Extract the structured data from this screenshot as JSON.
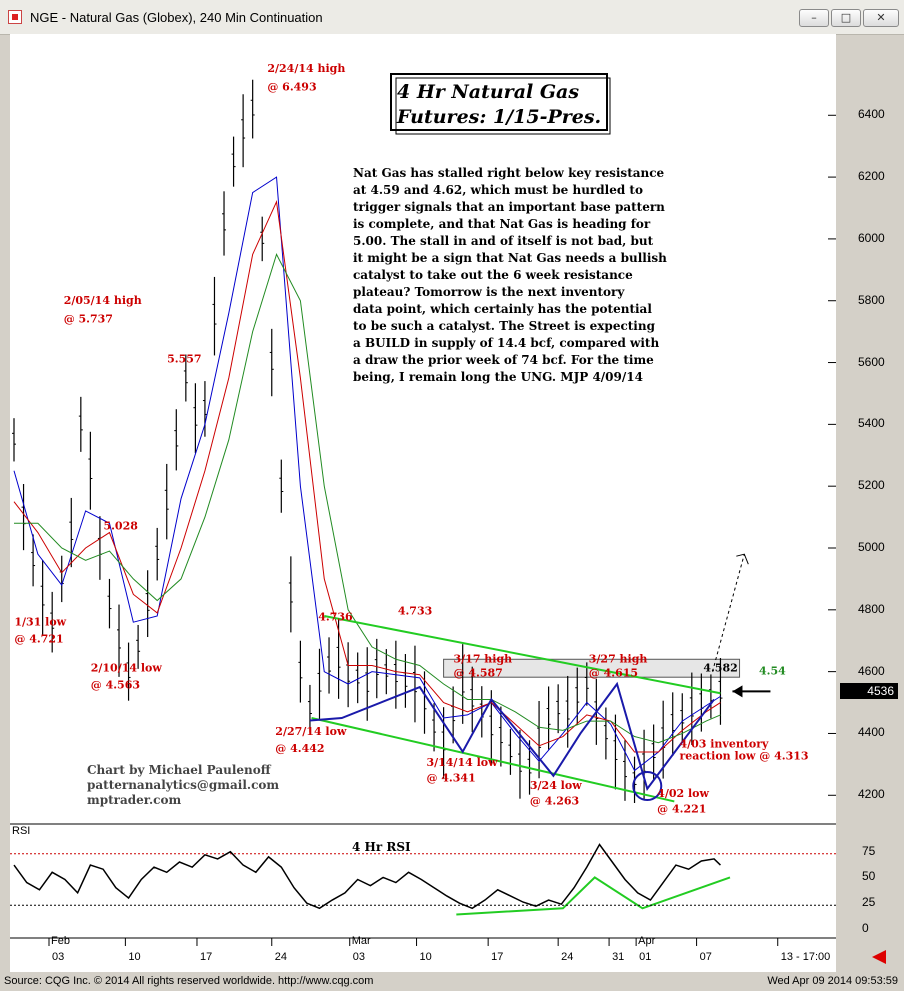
{
  "window": {
    "title": "NGE - Natural Gas (Globex), 240 Min Continuation",
    "minimize_glyph": "–",
    "maximize_glyph": "□",
    "close_glyph": "✕"
  },
  "status": {
    "source": "Source: CQG Inc. © 2014 All rights reserved worldwide. http://www.cqg.com",
    "timestamp": "Wed Apr 09 2014 09:53:59"
  },
  "chart_data": {
    "type": "line",
    "heading_line1": "4 Hr Natural Gas",
    "heading_line2": "Futures: 1/15-Pres.",
    "commentary": [
      "Nat Gas has stalled right below key resistance",
      "at 4.59 and 4.62, which must be hurdled to",
      "trigger signals that an important base pattern",
      "is complete, and that Nat Gas is heading for",
      "5.00. The stall in and of itself is not bad, but",
      "it might be a sign that Nat Gas needs a bullish",
      "catalyst to take out the 6 week resistance",
      "plateau?  Tomorrow is the next inventory",
      "data point, which certainly has the potential",
      "to be such a catalyst. The Street is expecting",
      "a BUILD in supply of 14.4 bcf, compared with",
      "a draw the prior week of 74 bcf. For the time",
      "being, I remain long the UNG. MJP  4/09/14"
    ],
    "author": [
      "Chart by Michael Paulenoff",
      "patternanalytics@gmail.com",
      "mptrader.com"
    ],
    "price_axis": {
      "range": [
        4120,
        6650
      ],
      "ticks": [
        4200,
        4400,
        4600,
        4800,
        5000,
        5200,
        5400,
        5600,
        5800,
        6000,
        6200,
        6400
      ],
      "tick_labels": [
        "4200",
        "4400",
        "4600",
        "4800",
        "5000",
        "5200",
        "5400",
        "5600",
        "5800",
        "6000",
        "6200",
        "6400"
      ],
      "last_price": "4536"
    },
    "rsi_panel": {
      "label": "RSI",
      "title": "4 Hr RSI",
      "range": [
        -5,
        100
      ],
      "ticks": [
        0,
        25,
        50,
        75
      ],
      "tick_labels": [
        "0",
        "25",
        "50",
        "75"
      ],
      "overbought": 73,
      "oversold": 23
    },
    "time_axis": {
      "range": [
        0,
        45
      ],
      "months": [
        {
          "label": "Feb",
          "x": 2.2
        },
        {
          "label": "Mar",
          "x": 21.1
        },
        {
          "label": "Apr",
          "x": 39.1
        }
      ],
      "days": [
        {
          "label": "03",
          "x": 2.2
        },
        {
          "label": "10",
          "x": 7.0
        },
        {
          "label": "17",
          "x": 11.5
        },
        {
          "label": "24",
          "x": 16.2
        },
        {
          "label": "03",
          "x": 21.1
        },
        {
          "label": "10",
          "x": 25.3
        },
        {
          "label": "17",
          "x": 29.8
        },
        {
          "label": "24",
          "x": 34.2
        },
        {
          "label": "31",
          "x": 37.4
        },
        {
          "label": "01",
          "x": 39.1
        },
        {
          "label": "07",
          "x": 42.9
        },
        {
          "label": "13 - 17:00",
          "x": 48.0
        }
      ]
    },
    "series": [
      {
        "kind": "bars",
        "color": "#000000",
        "x": [
          0,
          0.6,
          1.2,
          1.8,
          2.4,
          3.0,
          3.6,
          4.2,
          4.8,
          5.4,
          6.0,
          6.6,
          7.2,
          7.8,
          8.4,
          9.0,
          9.6,
          10.2,
          10.8,
          11.4,
          12.0,
          12.6,
          13.2,
          13.8,
          14.4,
          15.0,
          15.6,
          16.2,
          16.8,
          17.4,
          18.0,
          18.6,
          19.2,
          19.8,
          20.4,
          21.0,
          21.6,
          22.2,
          22.8,
          23.4,
          24.0,
          24.6,
          25.2,
          25.8,
          26.4,
          27.0,
          27.6,
          28.2,
          28.8,
          29.4,
          30.0,
          30.6,
          31.2,
          31.8,
          32.4,
          33.0,
          33.6,
          34.2,
          34.8,
          35.4,
          36.0,
          36.6,
          37.2,
          37.8,
          38.4,
          39.0,
          39.6,
          40.2,
          40.8,
          41.4,
          42.0,
          42.6,
          43.2,
          43.8,
          44.4
        ],
        "values": [
          5350,
          5100,
          4960,
          4840,
          4760,
          4900,
          5050,
          5400,
          5250,
          5000,
          4820,
          4700,
          4600,
          4680,
          4820,
          4980,
          5150,
          5350,
          5550,
          5420,
          5450,
          5750,
          6050,
          6250,
          6350,
          6420,
          6000,
          5600,
          5200,
          4850,
          4600,
          4480,
          4560,
          4620,
          4640,
          4590,
          4580,
          4560,
          4610,
          4600,
          4590,
          4570,
          4560,
          4500,
          4420,
          4370,
          4460,
          4560,
          4510,
          4470,
          4420,
          4390,
          4340,
          4300,
          4290,
          4380,
          4450,
          4480,
          4470,
          4520,
          4560,
          4470,
          4400,
          4340,
          4280,
          4250,
          4300,
          4340,
          4380,
          4430,
          4450,
          4480,
          4500,
          4520,
          4536
        ]
      },
      {
        "kind": "ma",
        "color": "#0000cc",
        "x": [
          0,
          1.5,
          3,
          4.5,
          6,
          7.5,
          9,
          10.5,
          12,
          13.5,
          15,
          16.5,
          18,
          19.5,
          21,
          22.5,
          24,
          25.5,
          27,
          28.5,
          30,
          31.5,
          33,
          34.5,
          36,
          37.5,
          39,
          40.5,
          42,
          43.5,
          44.4
        ],
        "values": [
          5250,
          4980,
          4880,
          5120,
          5080,
          4760,
          4780,
          5160,
          5400,
          5760,
          6150,
          6200,
          5200,
          4600,
          4560,
          4600,
          4590,
          4580,
          4450,
          4460,
          4500,
          4400,
          4310,
          4400,
          4500,
          4430,
          4280,
          4340,
          4440,
          4490,
          4520
        ]
      },
      {
        "kind": "ma",
        "color": "#cc0000",
        "x": [
          0,
          1.5,
          3,
          4.5,
          6,
          7.5,
          9,
          10.5,
          12,
          13.5,
          15,
          16.5,
          18,
          19.5,
          21,
          22.5,
          24,
          25.5,
          27,
          28.5,
          30,
          31.5,
          33,
          34.5,
          36,
          37.5,
          39,
          40.5,
          42,
          43.5,
          44.4
        ],
        "values": [
          5150,
          5050,
          4920,
          5000,
          5050,
          4850,
          4790,
          5000,
          5250,
          5550,
          5950,
          6120,
          5550,
          4900,
          4620,
          4620,
          4600,
          4590,
          4500,
          4470,
          4500,
          4430,
          4360,
          4390,
          4460,
          4440,
          4340,
          4340,
          4410,
          4470,
          4500
        ]
      },
      {
        "kind": "ma",
        "color": "#228b22",
        "x": [
          0,
          1.5,
          3,
          4.5,
          6,
          7.5,
          9,
          10.5,
          12,
          13.5,
          15,
          16.5,
          18,
          19.5,
          21,
          22.5,
          24,
          25.5,
          27,
          28.5,
          30,
          31.5,
          33,
          34.5,
          36,
          37.5,
          39,
          40.5,
          42,
          43.5,
          44.4
        ],
        "values": [
          5080,
          5080,
          5000,
          4960,
          4990,
          4900,
          4830,
          4900,
          5100,
          5350,
          5700,
          5950,
          5800,
          5200,
          4800,
          4680,
          4640,
          4620,
          4560,
          4510,
          4510,
          4470,
          4420,
          4410,
          4440,
          4440,
          4390,
          4370,
          4400,
          4440,
          4460
        ]
      }
    ],
    "rsi": {
      "x": [
        0,
        0.8,
        1.6,
        2.4,
        3.2,
        4.0,
        4.8,
        5.6,
        6.4,
        7.2,
        8.0,
        8.8,
        9.6,
        10.4,
        11.2,
        12.0,
        12.8,
        13.6,
        14.4,
        15.2,
        16.0,
        16.8,
        17.6,
        18.4,
        19.2,
        20.0,
        20.8,
        21.6,
        22.4,
        23.2,
        24.0,
        24.8,
        25.6,
        26.4,
        27.2,
        28.0,
        28.8,
        29.6,
        30.4,
        31.2,
        32.0,
        32.8,
        33.6,
        34.4,
        35.2,
        36.0,
        36.8,
        37.6,
        38.4,
        39.2,
        40.0,
        40.8,
        41.6,
        42.4,
        43.2,
        44.0,
        44.4
      ],
      "values": [
        62,
        45,
        38,
        55,
        48,
        35,
        62,
        58,
        40,
        30,
        48,
        60,
        55,
        65,
        60,
        72,
        68,
        75,
        62,
        55,
        70,
        60,
        40,
        25,
        20,
        28,
        35,
        48,
        42,
        50,
        45,
        55,
        48,
        40,
        32,
        25,
        20,
        28,
        38,
        32,
        26,
        22,
        28,
        24,
        40,
        60,
        82,
        65,
        48,
        35,
        28,
        45,
        62,
        58,
        66,
        68,
        62
      ]
    },
    "annotations": [
      {
        "text": "2/24/14 high",
        "price": 6540,
        "x": 16.3,
        "color": "#cc0000"
      },
      {
        "text": "@ 6.493",
        "price": 6480,
        "x": 16.3,
        "color": "#cc0000"
      },
      {
        "text": "2/05/14 high",
        "price": 5790,
        "x": 3.5,
        "color": "#cc0000"
      },
      {
        "text": "@ 5.737",
        "price": 5730,
        "x": 3.5,
        "color": "#cc0000"
      },
      {
        "text": "5.557",
        "price": 5600,
        "x": 10.0,
        "color": "#cc0000"
      },
      {
        "text": "5.028",
        "price": 5060,
        "x": 6.0,
        "color": "#cc0000"
      },
      {
        "text": "1/31 low",
        "price": 4750,
        "x": 0.4,
        "color": "#cc0000"
      },
      {
        "text": "@ 4.721",
        "price": 4695,
        "x": 0.4,
        "color": "#cc0000"
      },
      {
        "text": "2/10/14 low",
        "price": 4600,
        "x": 5.2,
        "color": "#cc0000"
      },
      {
        "text": "@ 4.563",
        "price": 4545,
        "x": 5.2,
        "color": "#cc0000"
      },
      {
        "text": "4.736",
        "price": 4765,
        "x": 19.5,
        "color": "#cc0000"
      },
      {
        "text": "4.733",
        "price": 4785,
        "x": 24.5,
        "color": "#cc0000"
      },
      {
        "text": "2/27/14 low",
        "price": 4395,
        "x": 16.8,
        "color": "#cc0000"
      },
      {
        "text": "@ 4.442",
        "price": 4340,
        "x": 16.8,
        "color": "#cc0000"
      },
      {
        "text": "3/17 high",
        "price": 4630,
        "x": 28.0,
        "color": "#cc0000"
      },
      {
        "text": "@ 4.587",
        "price": 4585,
        "x": 28.0,
        "color": "#cc0000"
      },
      {
        "text": "3/27 high",
        "price": 4630,
        "x": 36.5,
        "color": "#cc0000"
      },
      {
        "text": "@ 4.615",
        "price": 4585,
        "x": 36.5,
        "color": "#cc0000"
      },
      {
        "text": "4.582",
        "price": 4600,
        "x": 43.7,
        "color": "#000000"
      },
      {
        "text": "4.54",
        "price": 4590,
        "x": 47.2,
        "color": "#228b22"
      },
      {
        "text": "3/14/14 low",
        "price": 4295,
        "x": 26.3,
        "color": "#cc0000"
      },
      {
        "text": "@ 4.341",
        "price": 4245,
        "x": 26.3,
        "color": "#cc0000"
      },
      {
        "text": "3/24 low",
        "price": 4220,
        "x": 32.8,
        "color": "#cc0000"
      },
      {
        "text": "@ 4.263",
        "price": 4170,
        "x": 32.8,
        "color": "#cc0000"
      },
      {
        "text": "4/03 inventory",
        "price": 4355,
        "x": 42.2,
        "color": "#cc0000"
      },
      {
        "text": "reaction low @ 4.313",
        "price": 4315,
        "x": 42.2,
        "color": "#cc0000"
      },
      {
        "text": "4/02 low",
        "price": 4195,
        "x": 40.8,
        "color": "#cc0000"
      },
      {
        "text": "@ 4.221",
        "price": 4145,
        "x": 40.8,
        "color": "#cc0000"
      }
    ],
    "trend_lines": [
      {
        "color": "#22cc22",
        "x": [
          19.5,
          44.4
        ],
        "values": [
          4780,
          4530
        ]
      },
      {
        "color": "#22cc22",
        "x": [
          18.7,
          41.5
        ],
        "values": [
          4450,
          4180
        ]
      },
      {
        "color": "#1a1aaa",
        "x": [
          18.6,
          20.6,
          25.5,
          28.2,
          30.0,
          33.9,
          35.6,
          37.9,
          39.8,
          44.0
        ],
        "values": [
          4442,
          4450,
          4550,
          4341,
          4510,
          4263,
          4400,
          4560,
          4221,
          4510
        ]
      },
      {
        "color": "#22cc22",
        "rsi": true,
        "x": [
          27.8,
          34.5,
          36.5,
          39.5,
          45.0
        ],
        "values": [
          14,
          20,
          50,
          20,
          50
        ]
      }
    ],
    "resistance_zone": {
      "x": [
        27.0,
        45.6
      ],
      "values": [
        4582,
        4640
      ]
    },
    "projection": {
      "x": [
        43.9,
        45.9
      ],
      "values": [
        4600,
        4980
      ]
    },
    "circle": {
      "x": 39.8,
      "price": 4230
    }
  }
}
